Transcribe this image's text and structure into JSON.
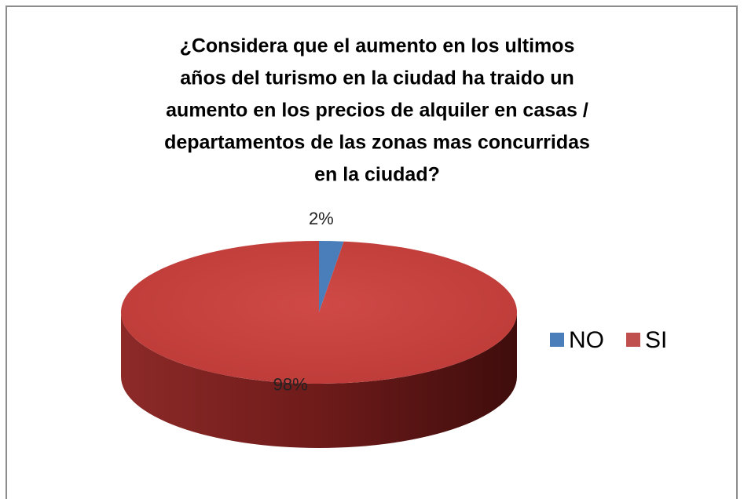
{
  "chart_data": {
    "type": "pie",
    "title": [
      "¿Considera que el aumento en los ultimos",
      "años del turismo en la ciudad ha traido un",
      "aumento en los precios de alquiler en casas /",
      "departamentos de las zonas mas concurridas",
      "en la ciudad?"
    ],
    "categories": [
      "NO",
      "SI"
    ],
    "values": [
      2,
      98
    ],
    "value_labels": [
      "2%",
      "98%"
    ],
    "colors": [
      "#4a7ebb",
      "#c0504d"
    ],
    "legend": "right"
  }
}
